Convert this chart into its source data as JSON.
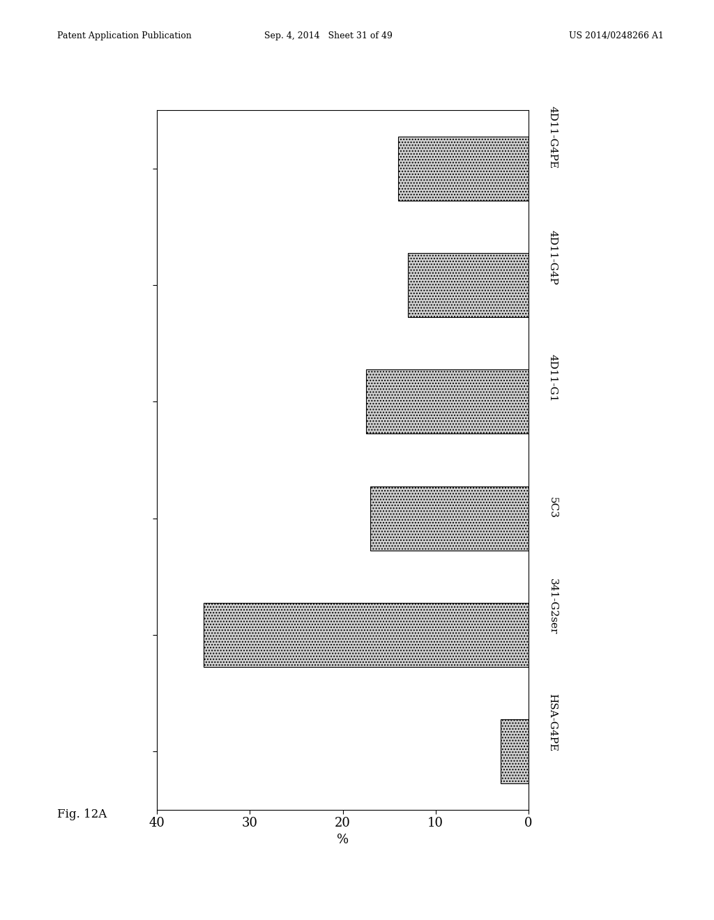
{
  "categories": [
    "HSA-G4PE",
    "341-G2ser",
    "5C3",
    "4D11-G1",
    "4D11-G4P",
    "4D11-G4PE"
  ],
  "values": [
    3.0,
    35.0,
    17.0,
    17.5,
    13.0,
    14.0
  ],
  "bar_color": "#d0d0d0",
  "xlabel": "%",
  "xlim": [
    0,
    40
  ],
  "xticks": [
    0,
    10,
    20,
    30,
    40
  ],
  "xtick_labels": [
    "0",
    "10",
    "20",
    "30",
    "40"
  ],
  "figure_label": "Fig. 12A",
  "background_color": "#ffffff",
  "header_left": "Patent Application Publication",
  "header_mid": "Sep. 4, 2014   Sheet 31 of 49",
  "header_right": "US 2014/0248266 A1",
  "bar_edgecolor": "#000000",
  "tick_fontsize": 13,
  "label_fontsize": 13,
  "category_fontsize": 11
}
